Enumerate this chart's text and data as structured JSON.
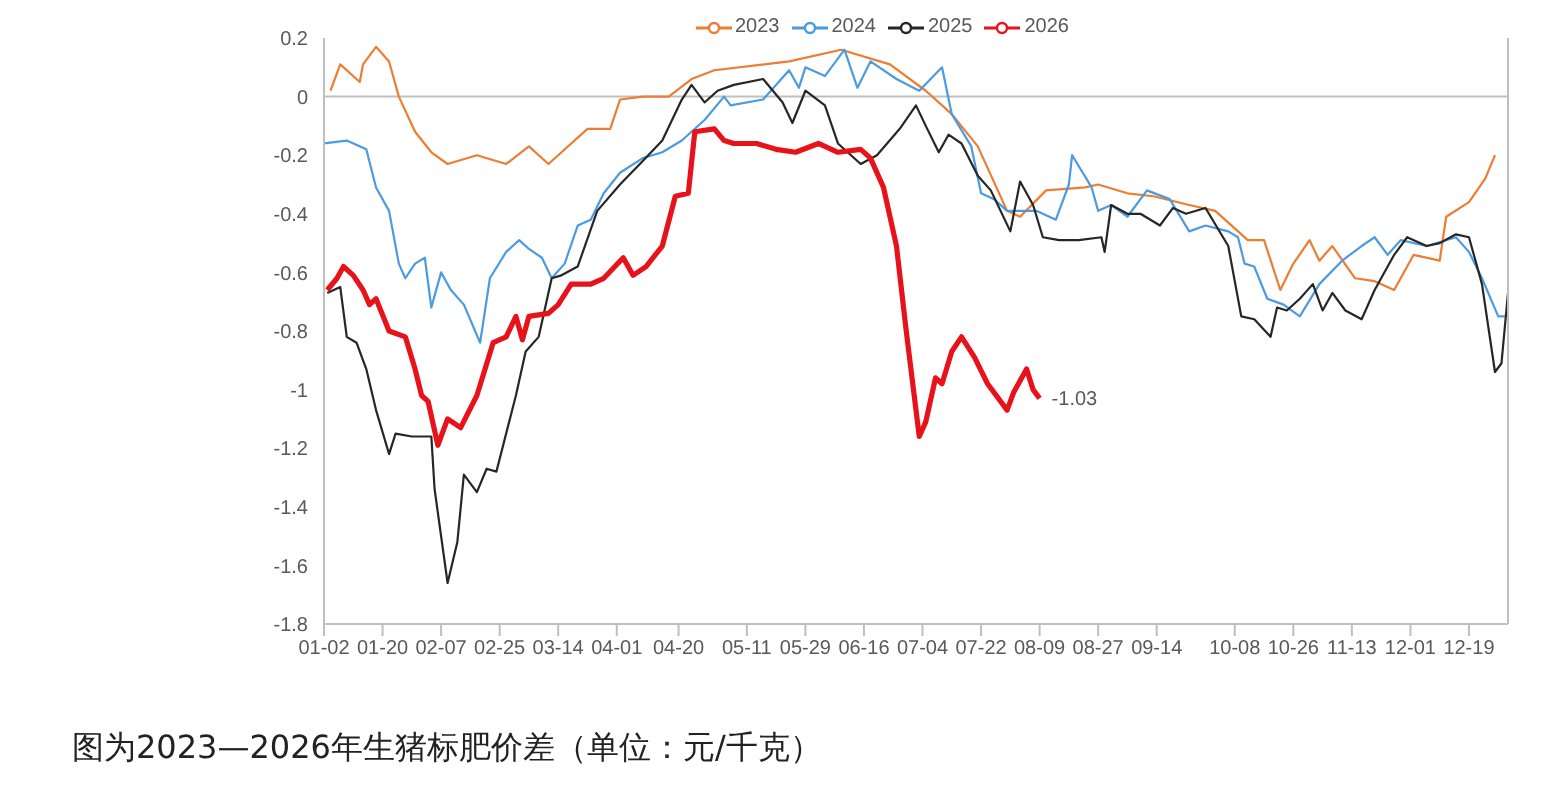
{
  "chart_data": {
    "type": "line",
    "legend": "top",
    "marker": "none",
    "line_style": "solid",
    "xlim": [
      "--01-02",
      "--12-31"
    ],
    "xticks": [
      {
        "value": "--01-02",
        "label": "01-02"
      },
      {
        "value": "--01-20",
        "label": "01-20"
      },
      {
        "value": "--02-07",
        "label": "02-07"
      },
      {
        "value": "--02-25",
        "label": "02-25"
      },
      {
        "value": "--03-14",
        "label": "03-14"
      },
      {
        "value": "--04-01",
        "label": "04-01"
      },
      {
        "value": "--04-20",
        "label": "04-20"
      },
      {
        "value": "--05-11",
        "label": "05-11"
      },
      {
        "value": "--05-29",
        "label": "05-29"
      },
      {
        "value": "--06-16",
        "label": "06-16"
      },
      {
        "value": "--07-04",
        "label": "07-04"
      },
      {
        "value": "--07-22",
        "label": "07-22"
      },
      {
        "value": "--08-09",
        "label": "08-09"
      },
      {
        "value": "--08-27",
        "label": "08-27"
      },
      {
        "value": "--09-14",
        "label": "09-14"
      },
      {
        "value": "--10-08",
        "label": "10-08"
      },
      {
        "value": "--10-26",
        "label": "10-26"
      },
      {
        "value": "--11-13",
        "label": "11-13"
      },
      {
        "value": "--12-01",
        "label": "12-01"
      },
      {
        "value": "--12-19",
        "label": "12-19"
      }
    ],
    "ylim": [
      -1.8,
      0.2
    ],
    "yticks": [
      -1.8,
      -1.6,
      -1.4,
      -1.2,
      -1,
      -0.8,
      -0.6,
      -0.4,
      -0.2,
      0,
      0.2
    ],
    "ref_lines": [
      {
        "axis": "y",
        "value": 0,
        "color": "#bfbfbf"
      }
    ],
    "annotations": [
      {
        "text": "-1.03",
        "x": "--08-09",
        "y": -1.03
      },
      "图为2023—2026年生猪标肥价差（单位：元/千克）"
    ],
    "series": [
      {
        "name": "2023",
        "color": "#ed7d31",
        "x": [
          "--01-04",
          "--01-07",
          "--01-13",
          "--01-14",
          "--01-18",
          "--01-22",
          "--01-25",
          "--01-30",
          "--02-04",
          "--02-09",
          "--02-18",
          "--02-27",
          "--03-05",
          "--03-11",
          "--03-14",
          "--03-23",
          "--03-30",
          "--04-02",
          "--04-09",
          "--04-17",
          "--04-24",
          "--05-01",
          "--05-24",
          "--06-09",
          "--06-24",
          "--07-05",
          "--07-13",
          "--07-21",
          "--07-30",
          "--08-03",
          "--08-11",
          "--08-23",
          "--08-27",
          "--09-05",
          "--09-13",
          "--09-24",
          "--10-02",
          "--10-12",
          "--10-17",
          "--10-22",
          "--10-26",
          "--10-31",
          "--11-03",
          "--11-07",
          "--11-14",
          "--11-20",
          "--11-26",
          "--12-02",
          "--12-10",
          "--12-12",
          "--12-19",
          "--12-24",
          "--12-27"
        ],
        "values": [
          0.02,
          0.11,
          0.05,
          0.11,
          0.17,
          0.12,
          0,
          -0.12,
          -0.19,
          -0.23,
          -0.2,
          -0.23,
          -0.17,
          -0.23,
          -0.2,
          -0.11,
          -0.11,
          -0.01,
          0,
          0,
          0.06,
          0.09,
          0.12,
          0.16,
          0.11,
          0.02,
          -0.06,
          -0.17,
          -0.39,
          -0.41,
          -0.32,
          -0.31,
          -0.3,
          -0.33,
          -0.34,
          -0.37,
          -0.39,
          -0.49,
          -0.49,
          -0.66,
          -0.57,
          -0.49,
          -0.56,
          -0.51,
          -0.62,
          -0.63,
          -0.66,
          -0.54,
          -0.56,
          -0.41,
          -0.36,
          -0.28,
          -0.2
        ]
      },
      {
        "name": "2024",
        "color": "#4c9be0",
        "x": [
          "--01-02",
          "--01-09",
          "--01-15",
          "--01-18",
          "--01-22",
          "--01-25",
          "--01-27",
          "--01-30",
          "--02-02",
          "--02-04",
          "--02-07",
          "--02-10",
          "--02-14",
          "--02-19",
          "--02-22",
          "--02-27",
          "--03-02",
          "--03-05",
          "--03-09",
          "--03-12",
          "--03-16",
          "--03-20",
          "--03-24",
          "--03-28",
          "--04-02",
          "--04-09",
          "--04-15",
          "--04-21",
          "--04-28",
          "--05-04",
          "--05-06",
          "--05-16",
          "--05-24",
          "--05-27",
          "--05-29",
          "--06-04",
          "--06-10",
          "--06-14",
          "--06-18",
          "--06-26",
          "--07-03",
          "--07-10",
          "--07-13",
          "--07-19",
          "--07-22",
          "--07-26",
          "--07-30",
          "--08-08",
          "--08-14",
          "--08-18",
          "--08-19",
          "--08-25",
          "--08-27",
          "--08-31",
          "--09-05",
          "--09-11",
          "--09-18",
          "--09-24",
          "--09-29",
          "--10-06",
          "--10-09",
          "--10-11",
          "--10-14",
          "--10-18",
          "--10-23",
          "--10-28",
          "--11-03",
          "--11-10",
          "--11-16",
          "--11-20",
          "--11-24",
          "--11-28",
          "--12-06",
          "--12-15",
          "--12-19",
          "--12-23",
          "--12-28",
          "--12-30"
        ],
        "values": [
          -0.16,
          -0.15,
          -0.18,
          -0.31,
          -0.39,
          -0.57,
          -0.62,
          -0.57,
          -0.55,
          -0.72,
          -0.6,
          -0.66,
          -0.71,
          -0.84,
          -0.62,
          -0.53,
          -0.49,
          -0.52,
          -0.55,
          -0.62,
          -0.57,
          -0.44,
          -0.42,
          -0.33,
          -0.26,
          -0.21,
          -0.19,
          -0.15,
          -0.08,
          0,
          -0.03,
          -0.01,
          0.09,
          0.03,
          0.1,
          0.07,
          0.16,
          0.03,
          0.12,
          0.06,
          0.02,
          0.1,
          -0.06,
          -0.17,
          -0.33,
          -0.35,
          -0.39,
          -0.39,
          -0.42,
          -0.3,
          -0.2,
          -0.31,
          -0.39,
          -0.37,
          -0.41,
          -0.32,
          -0.35,
          -0.46,
          -0.44,
          -0.46,
          -0.48,
          -0.57,
          -0.58,
          -0.69,
          -0.71,
          -0.75,
          -0.64,
          -0.56,
          -0.51,
          -0.48,
          -0.54,
          -0.49,
          -0.51,
          -0.48,
          -0.53,
          -0.62,
          -0.75,
          -0.75
        ]
      },
      {
        "name": "2025",
        "color": "#262626",
        "x": [
          "--01-03",
          "--01-07",
          "--01-09",
          "--01-12",
          "--01-15",
          "--01-18",
          "--01-22",
          "--01-24",
          "--01-29",
          "--02-04",
          "--02-05",
          "--02-09",
          "--02-12",
          "--02-14",
          "--02-18",
          "--02-21",
          "--02-24",
          "--03-01",
          "--03-04",
          "--03-08",
          "--03-12",
          "--03-15",
          "--03-20",
          "--03-26",
          "--04-02",
          "--04-09",
          "--04-15",
          "--04-21",
          "--04-24",
          "--04-28",
          "--05-02",
          "--05-07",
          "--05-16",
          "--05-22",
          "--05-25",
          "--05-29",
          "--06-04",
          "--06-08",
          "--06-15",
          "--06-20",
          "--06-27",
          "--07-02",
          "--07-05",
          "--07-09",
          "--07-12",
          "--07-16",
          "--07-21",
          "--07-25",
          "--07-31",
          "--08-03",
          "--08-07",
          "--08-10",
          "--08-15",
          "--08-21",
          "--08-28",
          "--08-29",
          "--08-31",
          "--09-05",
          "--09-09",
          "--09-15",
          "--09-19",
          "--09-23",
          "--09-29",
          "--10-06",
          "--10-10",
          "--10-14",
          "--10-19",
          "--10-21",
          "--10-24",
          "--10-28",
          "--11-01",
          "--11-04",
          "--11-07",
          "--11-11",
          "--11-16",
          "--11-20",
          "--11-26",
          "--11-30",
          "--12-06",
          "--12-10",
          "--12-15",
          "--12-19",
          "--12-23",
          "--12-27",
          "--12-29",
          "--12-31"
        ],
        "values": [
          -0.67,
          -0.65,
          -0.82,
          -0.84,
          -0.93,
          -1.07,
          -1.22,
          -1.15,
          -1.16,
          -1.16,
          -1.34,
          -1.66,
          -1.52,
          -1.29,
          -1.35,
          -1.27,
          -1.28,
          -1.02,
          -0.87,
          -0.82,
          -0.62,
          -0.61,
          -0.58,
          -0.39,
          -0.3,
          -0.22,
          -0.15,
          -0.01,
          0.04,
          -0.02,
          0.02,
          0.04,
          0.06,
          -0.02,
          -0.09,
          0.02,
          -0.03,
          -0.16,
          -0.23,
          -0.2,
          -0.11,
          -0.03,
          -0.1,
          -0.19,
          -0.13,
          -0.16,
          -0.27,
          -0.32,
          -0.46,
          -0.29,
          -0.37,
          -0.48,
          -0.49,
          -0.49,
          -0.48,
          -0.53,
          -0.37,
          -0.4,
          -0.4,
          -0.44,
          -0.38,
          -0.4,
          -0.38,
          -0.51,
          -0.75,
          -0.76,
          -0.82,
          -0.72,
          -0.73,
          -0.69,
          -0.64,
          -0.73,
          -0.67,
          -0.73,
          -0.76,
          -0.66,
          -0.54,
          -0.48,
          -0.51,
          -0.5,
          -0.47,
          -0.48,
          -0.64,
          -0.94,
          -0.91,
          -0.67
        ]
      },
      {
        "name": "2026",
        "color": "#e8121a",
        "x": [
          "--01-03",
          "--01-06",
          "--01-08",
          "--01-11",
          "--01-14",
          "--01-16",
          "--01-18",
          "--01-22",
          "--01-27",
          "--01-30",
          "--02-01",
          "--02-03",
          "--02-06",
          "--02-09",
          "--02-13",
          "--02-18",
          "--02-23",
          "--02-27",
          "--03-01",
          "--03-03",
          "--03-05",
          "--03-11",
          "--03-14",
          "--03-18",
          "--03-24",
          "--03-28",
          "--04-03",
          "--04-06",
          "--04-10",
          "--04-15",
          "--04-19",
          "--04-23",
          "--04-25",
          "--05-01",
          "--05-04",
          "--05-07",
          "--05-14",
          "--05-20",
          "--05-26",
          "--06-02",
          "--06-08",
          "--06-15",
          "--06-18",
          "--06-22",
          "--06-26",
          "--06-29",
          "--07-01",
          "--07-03",
          "--07-05",
          "--07-08",
          "--07-10",
          "--07-13",
          "--07-16",
          "--07-20",
          "--07-24",
          "--07-30",
          "--08-01",
          "--08-05",
          "--08-07",
          "--08-09"
        ],
        "values": [
          -0.66,
          -0.62,
          -0.58,
          -0.61,
          -0.66,
          -0.71,
          -0.69,
          -0.8,
          -0.82,
          -0.93,
          -1.02,
          -1.04,
          -1.19,
          -1.1,
          -1.13,
          -1.02,
          -0.84,
          -0.82,
          -0.75,
          -0.83,
          -0.75,
          -0.74,
          -0.71,
          -0.64,
          -0.64,
          -0.62,
          -0.55,
          -0.61,
          -0.58,
          -0.51,
          -0.34,
          -0.33,
          -0.12,
          -0.11,
          -0.15,
          -0.16,
          -0.16,
          -0.18,
          -0.19,
          -0.16,
          -0.19,
          -0.18,
          -0.21,
          -0.31,
          -0.51,
          -0.8,
          -0.98,
          -1.16,
          -1.11,
          -0.96,
          -0.98,
          -0.87,
          -0.82,
          -0.89,
          -0.98,
          -1.07,
          -1.01,
          -0.93,
          -1,
          -1.03
        ]
      }
    ]
  }
}
